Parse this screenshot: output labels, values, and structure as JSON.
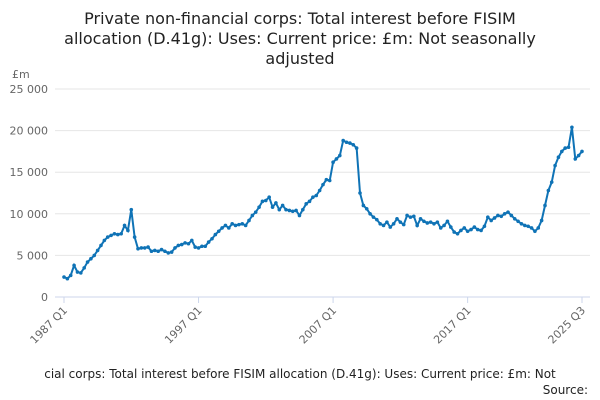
{
  "chart_data": {
    "type": "line",
    "title": [
      "Private non-financial corps: Total interest before FISIM",
      "allocation (D.41g): Uses: Current price: £m: Not seasonally",
      "adjusted"
    ],
    "y_unit": "£m",
    "caption": "cial corps: Total interest before FISIM allocation (D.41g): Uses: Current price: £m: Not",
    "source": "Source:",
    "categories": [
      "1987 Q1",
      null,
      null,
      null,
      null,
      null,
      null,
      null,
      null,
      null,
      null,
      null,
      null,
      null,
      null,
      null,
      null,
      null,
      null,
      null,
      null,
      null,
      null,
      null,
      null,
      null,
      null,
      null,
      null,
      null,
      null,
      null,
      null,
      null,
      null,
      null,
      null,
      null,
      null,
      null,
      "1997 Q1",
      null,
      null,
      null,
      null,
      null,
      null,
      null,
      null,
      null,
      null,
      null,
      null,
      null,
      null,
      null,
      null,
      null,
      null,
      null,
      null,
      null,
      null,
      null,
      null,
      null,
      null,
      null,
      null,
      null,
      null,
      null,
      null,
      null,
      null,
      null,
      null,
      null,
      null,
      null,
      "2007 Q1",
      null,
      null,
      null,
      null,
      null,
      null,
      null,
      null,
      null,
      null,
      null,
      null,
      null,
      null,
      null,
      null,
      null,
      null,
      null,
      null,
      null,
      null,
      null,
      null,
      null,
      null,
      null,
      null,
      null,
      null,
      null,
      null,
      null,
      null,
      null,
      null,
      null,
      null,
      null,
      "2017 Q1",
      null,
      null,
      null,
      null,
      null,
      null,
      null,
      null,
      null,
      null,
      null,
      null,
      null,
      null,
      null,
      null,
      null,
      null,
      null,
      null,
      null,
      null,
      null,
      null,
      null,
      null,
      null,
      null,
      null,
      null,
      null,
      null,
      null,
      "2025 Q3"
    ],
    "values": [
      2400,
      2200,
      2600,
      3800,
      3000,
      2900,
      3500,
      4200,
      4600,
      5000,
      5600,
      6200,
      6800,
      7200,
      7400,
      7600,
      7500,
      7600,
      8600,
      8000,
      10500,
      7200,
      5800,
      5900,
      5900,
      6000,
      5500,
      5600,
      5500,
      5700,
      5500,
      5300,
      5400,
      5900,
      6200,
      6300,
      6500,
      6400,
      6800,
      6000,
      5900,
      6100,
      6100,
      6600,
      7000,
      7500,
      7900,
      8300,
      8600,
      8300,
      8800,
      8600,
      8700,
      8800,
      8600,
      9200,
      9800,
      10200,
      10800,
      11500,
      11600,
      12000,
      10800,
      11300,
      10500,
      11000,
      10500,
      10400,
      10300,
      10400,
      9800,
      10500,
      11200,
      11500,
      12000,
      12200,
      12800,
      13500,
      14100,
      14000,
      16200,
      16600,
      17000,
      18800,
      18600,
      18500,
      18300,
      17900,
      12500,
      11000,
      10600,
      10000,
      9600,
      9300,
      8800,
      8600,
      9000,
      8400,
      8800,
      9400,
      9000,
      8700,
      9800,
      9600,
      9700,
      8600,
      9400,
      9100,
      8900,
      9000,
      8800,
      9000,
      8300,
      8600,
      9100,
      8400,
      7800,
      7600,
      8000,
      8300,
      7900,
      8100,
      8400,
      8100,
      8000,
      8500,
      9600,
      9200,
      9500,
      9800,
      9700,
      10000,
      10200,
      9800,
      9400,
      9100,
      8800,
      8600,
      8500,
      8300,
      7900,
      8300,
      9200,
      11000,
      12800,
      13800,
      15800,
      16800,
      17500,
      17900,
      18000,
      20400,
      16600,
      17000,
      17500
    ],
    "color": "#0f73b6",
    "ylim": [
      0,
      25000
    ],
    "yticks": [
      0,
      {
        "value": 5000,
        "label": "5 000"
      },
      {
        "value": 10000,
        "label": "10 000"
      },
      {
        "value": 15000,
        "label": "15 000"
      },
      {
        "value": 20000,
        "label": "20 000"
      },
      {
        "value": 25000,
        "label": "25 000"
      }
    ],
    "grid": true
  }
}
